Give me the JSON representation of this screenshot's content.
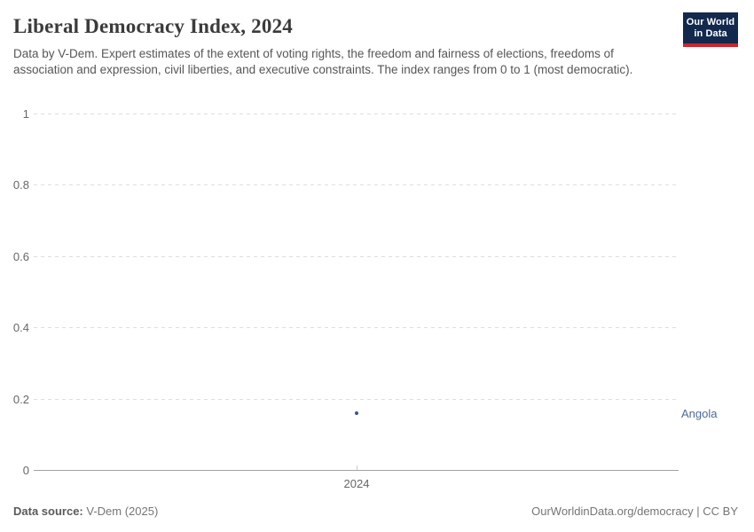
{
  "header": {
    "title": "Liberal Democracy Index, 2024",
    "subtitle": "Data by V-Dem. Expert estimates of the extent of voting rights, the freedom and fairness of elections, freedoms of association and expression, civil liberties, and executive constraints. The index ranges from 0 to 1 (most democratic).",
    "logo": {
      "line1": "Our World",
      "line2": "in Data",
      "bg_color": "#12294d",
      "accent_color": "#d0242b"
    }
  },
  "chart_data": {
    "type": "scatter",
    "title": "Liberal Democracy Index, 2024",
    "x": [
      2024
    ],
    "xtick_labels": [
      "2024"
    ],
    "series": [
      {
        "name": "Angola",
        "values": [
          0.16
        ],
        "point_color": "#3d5492",
        "label_color": "#4c6a9c"
      }
    ],
    "ylim": [
      0,
      1
    ],
    "yticks": [
      0,
      0.2,
      0.4,
      0.6,
      0.8,
      1
    ],
    "ytick_labels": [
      "0",
      "0.2",
      "0.4",
      "0.6",
      "0.8",
      "1"
    ],
    "xlabel": "",
    "ylabel": "",
    "grid": "dashed-horizontal",
    "legend_position": "right-of-point",
    "grid_color": "#dedede",
    "axis_color": "#a3a3a3",
    "tick_color": "#cccccc",
    "tick_text_color": "#666666"
  },
  "footer": {
    "source_label": "Data source:",
    "source_value": " V-Dem (2025)",
    "credit": "OurWorldinData.org/democracy | CC BY"
  }
}
